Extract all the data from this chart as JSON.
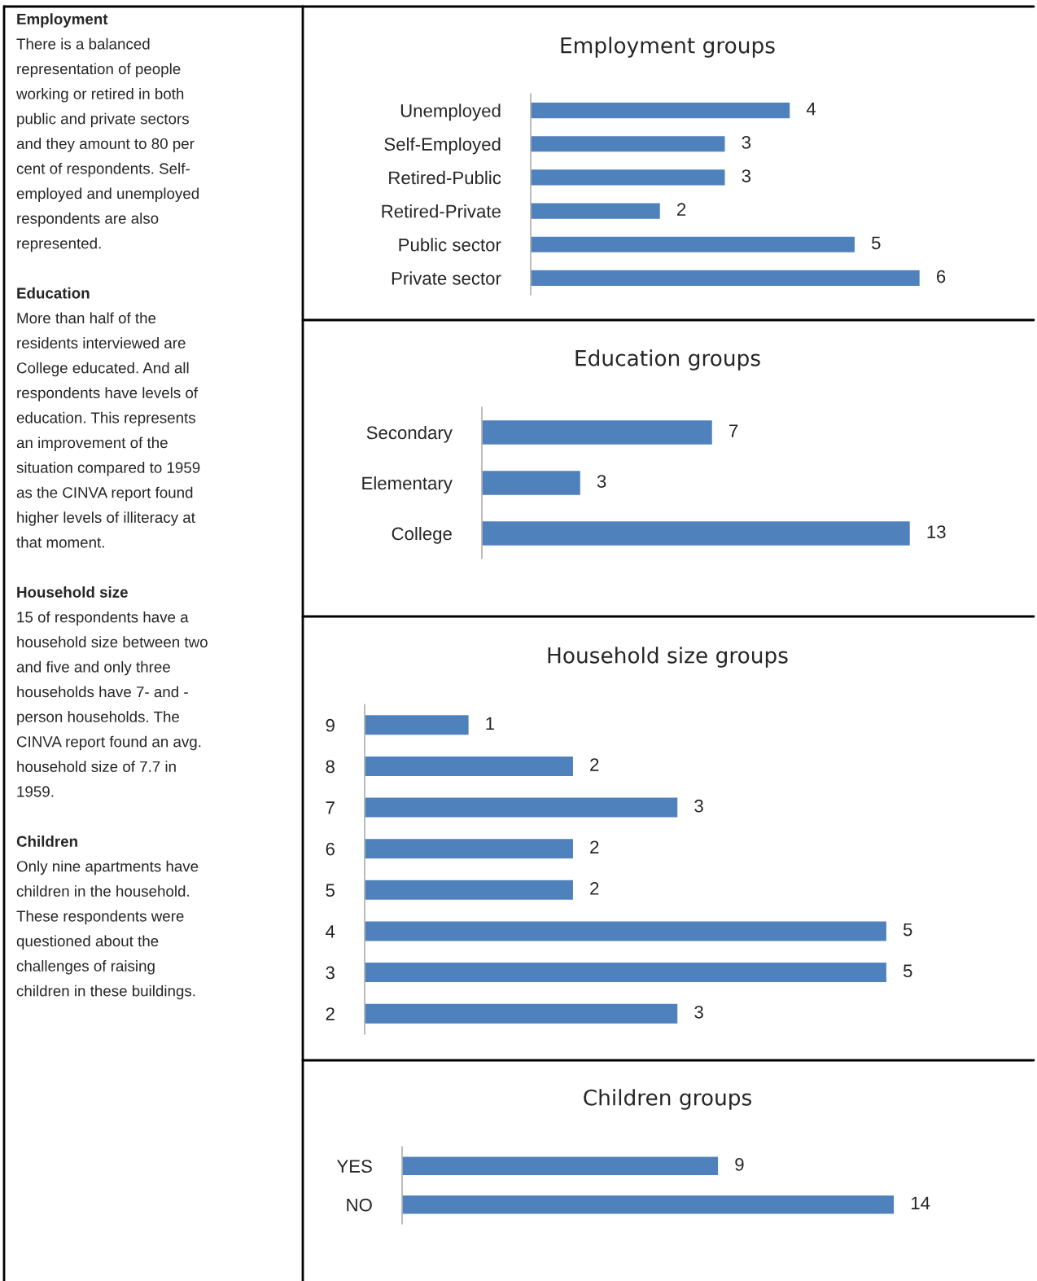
{
  "chart_data": [
    {
      "type": "other",
      "annotations": [
        "Employment",
        "There is a balanced\nrepresentation of people\nworking or retired in both\npublic and private sectors\nand they amount to 80 per\ncent of respondents. Self-\nemployed and unemployed\nrespondents are also\nrepresented.",
        "Education",
        "More than half of the\nresidents interviewed are\nCollege educated. And all\nrespondents have levels of\neducation. This represents\nan improvement of the\nsituation compared to 1959\nas the CINVA report found\nhigher levels of illiteracy at\nthat moment.",
        "Household size",
        "15 of respondents have a\nhousehold size between two\nand five and only three\nhouseholds have 7- and -\nperson households. The\nCINVA report found an avg.\nhousehold size of 7.7 in\n1959.",
        "Children",
        "Only nine apartments have\nchildren in the household.\nThese respondents were\nquestioned about the\nchallenges of raising\nchildren in these buildings."
      ]
    },
    {
      "type": "bar",
      "orientation": "horizontal",
      "title": "Employment groups",
      "categories": [
        "Unemployed",
        "Self-Employed",
        "Retired-Public",
        "Retired-Private",
        "Public sector",
        "Private sector"
      ],
      "values": [
        4,
        3,
        3,
        2,
        5,
        6
      ],
      "color": "#4f81bd",
      "data_labels": true,
      "tick_labels": "y"
    },
    {
      "type": "bar",
      "orientation": "horizontal",
      "title": "Education groups",
      "categories": [
        "Secondary",
        "Elementary",
        "College"
      ],
      "values": [
        7,
        3,
        13
      ],
      "color": "#4f81bd",
      "data_labels": true,
      "tick_labels": "y"
    },
    {
      "type": "bar",
      "orientation": "horizontal",
      "title": "Household size groups",
      "categories": [
        "9",
        "8",
        "7",
        "6",
        "5",
        "4",
        "3",
        "2"
      ],
      "values": [
        1,
        2,
        3,
        2,
        2,
        5,
        5,
        3
      ],
      "color": "#4f81bd",
      "data_labels": true,
      "tick_labels": "y"
    },
    {
      "type": "bar",
      "orientation": "horizontal",
      "title": "Children groups",
      "categories": [
        "YES",
        "NO"
      ],
      "values": [
        9,
        14
      ],
      "color": "#4f81bd",
      "data_labels": true,
      "tick_labels": "y"
    }
  ]
}
